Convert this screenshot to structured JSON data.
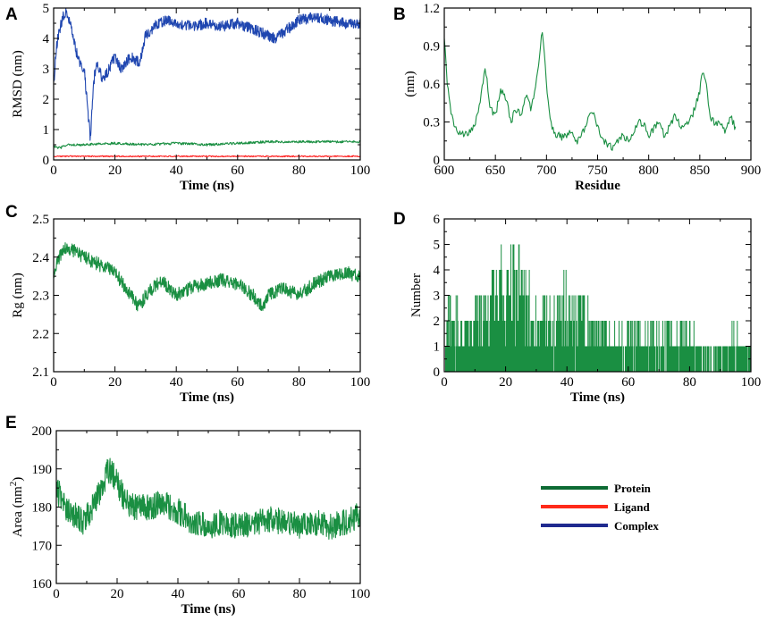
{
  "colors": {
    "protein": "#1a8f42",
    "ligand": "#ff1a1a",
    "complex": "#1f46b0"
  },
  "legend": {
    "items": [
      {
        "label": "Protein",
        "color": "#0d6b34"
      },
      {
        "label": "Ligand",
        "color": "#ff2a1a"
      },
      {
        "label": "Complex",
        "color": "#1f2a8f"
      }
    ]
  },
  "chart_data": [
    {
      "panel": "A",
      "type": "line",
      "xlabel": "Time (ns)",
      "ylabel": "RMSD (nm)",
      "xlim": [
        0,
        100
      ],
      "ylim": [
        0,
        5
      ],
      "xticks": [
        0,
        20,
        40,
        60,
        80,
        100
      ],
      "yticks": [
        0,
        1,
        2,
        3,
        4,
        5
      ],
      "series": [
        {
          "name": "Complex",
          "x": [
            0,
            1,
            2,
            3,
            4,
            5,
            6,
            8,
            10,
            11,
            12,
            13,
            14,
            16,
            18,
            20,
            22,
            25,
            28,
            30,
            33,
            36,
            40,
            45,
            50,
            55,
            60,
            65,
            70,
            72,
            75,
            80,
            85,
            90,
            95,
            100
          ],
          "y": [
            2.5,
            3.8,
            4.3,
            4.7,
            4.85,
            4.6,
            4.2,
            3.3,
            3.0,
            1.8,
            0.7,
            2.5,
            3.3,
            2.6,
            3.0,
            3.4,
            3.0,
            3.4,
            3.2,
            4.1,
            4.4,
            4.6,
            4.5,
            4.4,
            4.5,
            4.4,
            4.5,
            4.3,
            4.1,
            4.0,
            4.2,
            4.6,
            4.7,
            4.6,
            4.5,
            4.5
          ]
        },
        {
          "name": "Protein",
          "x": [
            0,
            2,
            5,
            10,
            20,
            30,
            40,
            50,
            60,
            70,
            80,
            90,
            100
          ],
          "y": [
            0.45,
            0.4,
            0.5,
            0.5,
            0.55,
            0.5,
            0.55,
            0.5,
            0.55,
            0.6,
            0.6,
            0.6,
            0.6
          ]
        },
        {
          "name": "Ligand",
          "x": [
            0,
            20,
            40,
            60,
            80,
            100
          ],
          "y": [
            0.12,
            0.12,
            0.12,
            0.12,
            0.12,
            0.12
          ]
        }
      ]
    },
    {
      "panel": "B",
      "type": "line",
      "xlabel": "Residue",
      "ylabel": "(nm)",
      "xlim": [
        600,
        900
      ],
      "ylim": [
        0,
        1.2
      ],
      "xticks": [
        600,
        650,
        700,
        750,
        800,
        850,
        900
      ],
      "yticks": [
        0,
        0.3,
        0.6,
        0.9,
        1.2
      ],
      "series": [
        {
          "name": "Protein",
          "x": [
            600,
            603,
            606,
            610,
            615,
            620,
            625,
            630,
            635,
            640,
            645,
            650,
            655,
            660,
            665,
            670,
            675,
            680,
            685,
            690,
            693,
            696,
            700,
            705,
            710,
            715,
            720,
            725,
            730,
            735,
            740,
            745,
            750,
            755,
            760,
            765,
            770,
            775,
            780,
            785,
            790,
            795,
            800,
            805,
            810,
            815,
            820,
            825,
            830,
            835,
            840,
            845,
            850,
            853,
            856,
            860,
            865,
            870,
            875,
            880,
            885
          ],
          "y": [
            0.95,
            0.6,
            0.4,
            0.25,
            0.2,
            0.2,
            0.22,
            0.28,
            0.45,
            0.75,
            0.4,
            0.35,
            0.55,
            0.5,
            0.3,
            0.4,
            0.35,
            0.5,
            0.4,
            0.6,
            0.8,
            1.03,
            0.6,
            0.25,
            0.2,
            0.18,
            0.2,
            0.22,
            0.15,
            0.2,
            0.3,
            0.38,
            0.25,
            0.15,
            0.12,
            0.1,
            0.15,
            0.2,
            0.15,
            0.22,
            0.3,
            0.28,
            0.2,
            0.25,
            0.32,
            0.2,
            0.25,
            0.35,
            0.28,
            0.25,
            0.3,
            0.4,
            0.55,
            0.72,
            0.6,
            0.35,
            0.28,
            0.3,
            0.2,
            0.35,
            0.25
          ]
        }
      ]
    },
    {
      "panel": "C",
      "type": "line",
      "xlabel": "Time (ns)",
      "ylabel": "Rg (nm)",
      "xlim": [
        0,
        100
      ],
      "ylim": [
        2.1,
        2.5
      ],
      "xticks": [
        0,
        20,
        40,
        60,
        80,
        100
      ],
      "yticks": [
        2.1,
        2.2,
        2.3,
        2.4,
        2.5
      ],
      "series": [
        {
          "name": "Protein",
          "x": [
            0,
            3,
            6,
            10,
            15,
            20,
            25,
            28,
            30,
            35,
            40,
            45,
            50,
            55,
            60,
            65,
            68,
            70,
            75,
            80,
            85,
            90,
            95,
            100
          ],
          "y": [
            2.36,
            2.42,
            2.42,
            2.4,
            2.38,
            2.36,
            2.3,
            2.27,
            2.3,
            2.34,
            2.3,
            2.32,
            2.33,
            2.34,
            2.33,
            2.3,
            2.27,
            2.3,
            2.32,
            2.3,
            2.33,
            2.35,
            2.36,
            2.35
          ]
        }
      ]
    },
    {
      "panel": "D",
      "type": "line",
      "xlabel": "Time (ns)",
      "ylabel": "Number",
      "xlim": [
        0,
        100
      ],
      "ylim": [
        0,
        6
      ],
      "xticks": [
        0,
        20,
        40,
        60,
        80,
        100
      ],
      "yticks": [
        0,
        1,
        2,
        3,
        4,
        5,
        6
      ],
      "series": [
        {
          "name": "Protein",
          "x": [
            0,
            10,
            20,
            25,
            30,
            35,
            40,
            45,
            50,
            55,
            60,
            65,
            70,
            75,
            80,
            85,
            90,
            95,
            100
          ],
          "y": [
            3,
            3,
            5,
            5,
            3,
            3,
            4,
            3,
            2,
            2,
            2,
            2,
            2,
            2,
            2,
            1,
            1,
            2,
            1
          ]
        }
      ]
    },
    {
      "panel": "E",
      "type": "line",
      "xlabel": "Time (ns)",
      "ylabel": "Area (nm²)",
      "xlim": [
        0,
        100
      ],
      "ylim": [
        160,
        200
      ],
      "xticks": [
        0,
        20,
        40,
        60,
        80,
        100
      ],
      "yticks": [
        160,
        170,
        180,
        190,
        200
      ],
      "series": [
        {
          "name": "Protein",
          "x": [
            0,
            3,
            6,
            9,
            12,
            15,
            17,
            19,
            22,
            25,
            30,
            35,
            40,
            45,
            50,
            55,
            60,
            65,
            70,
            75,
            80,
            85,
            90,
            95,
            100
          ],
          "y": [
            185,
            180,
            178,
            176,
            180,
            185,
            190,
            188,
            183,
            180,
            180,
            181,
            179,
            176,
            175,
            176,
            175,
            176,
            177,
            176,
            175,
            176,
            175,
            176,
            178
          ]
        }
      ]
    }
  ]
}
